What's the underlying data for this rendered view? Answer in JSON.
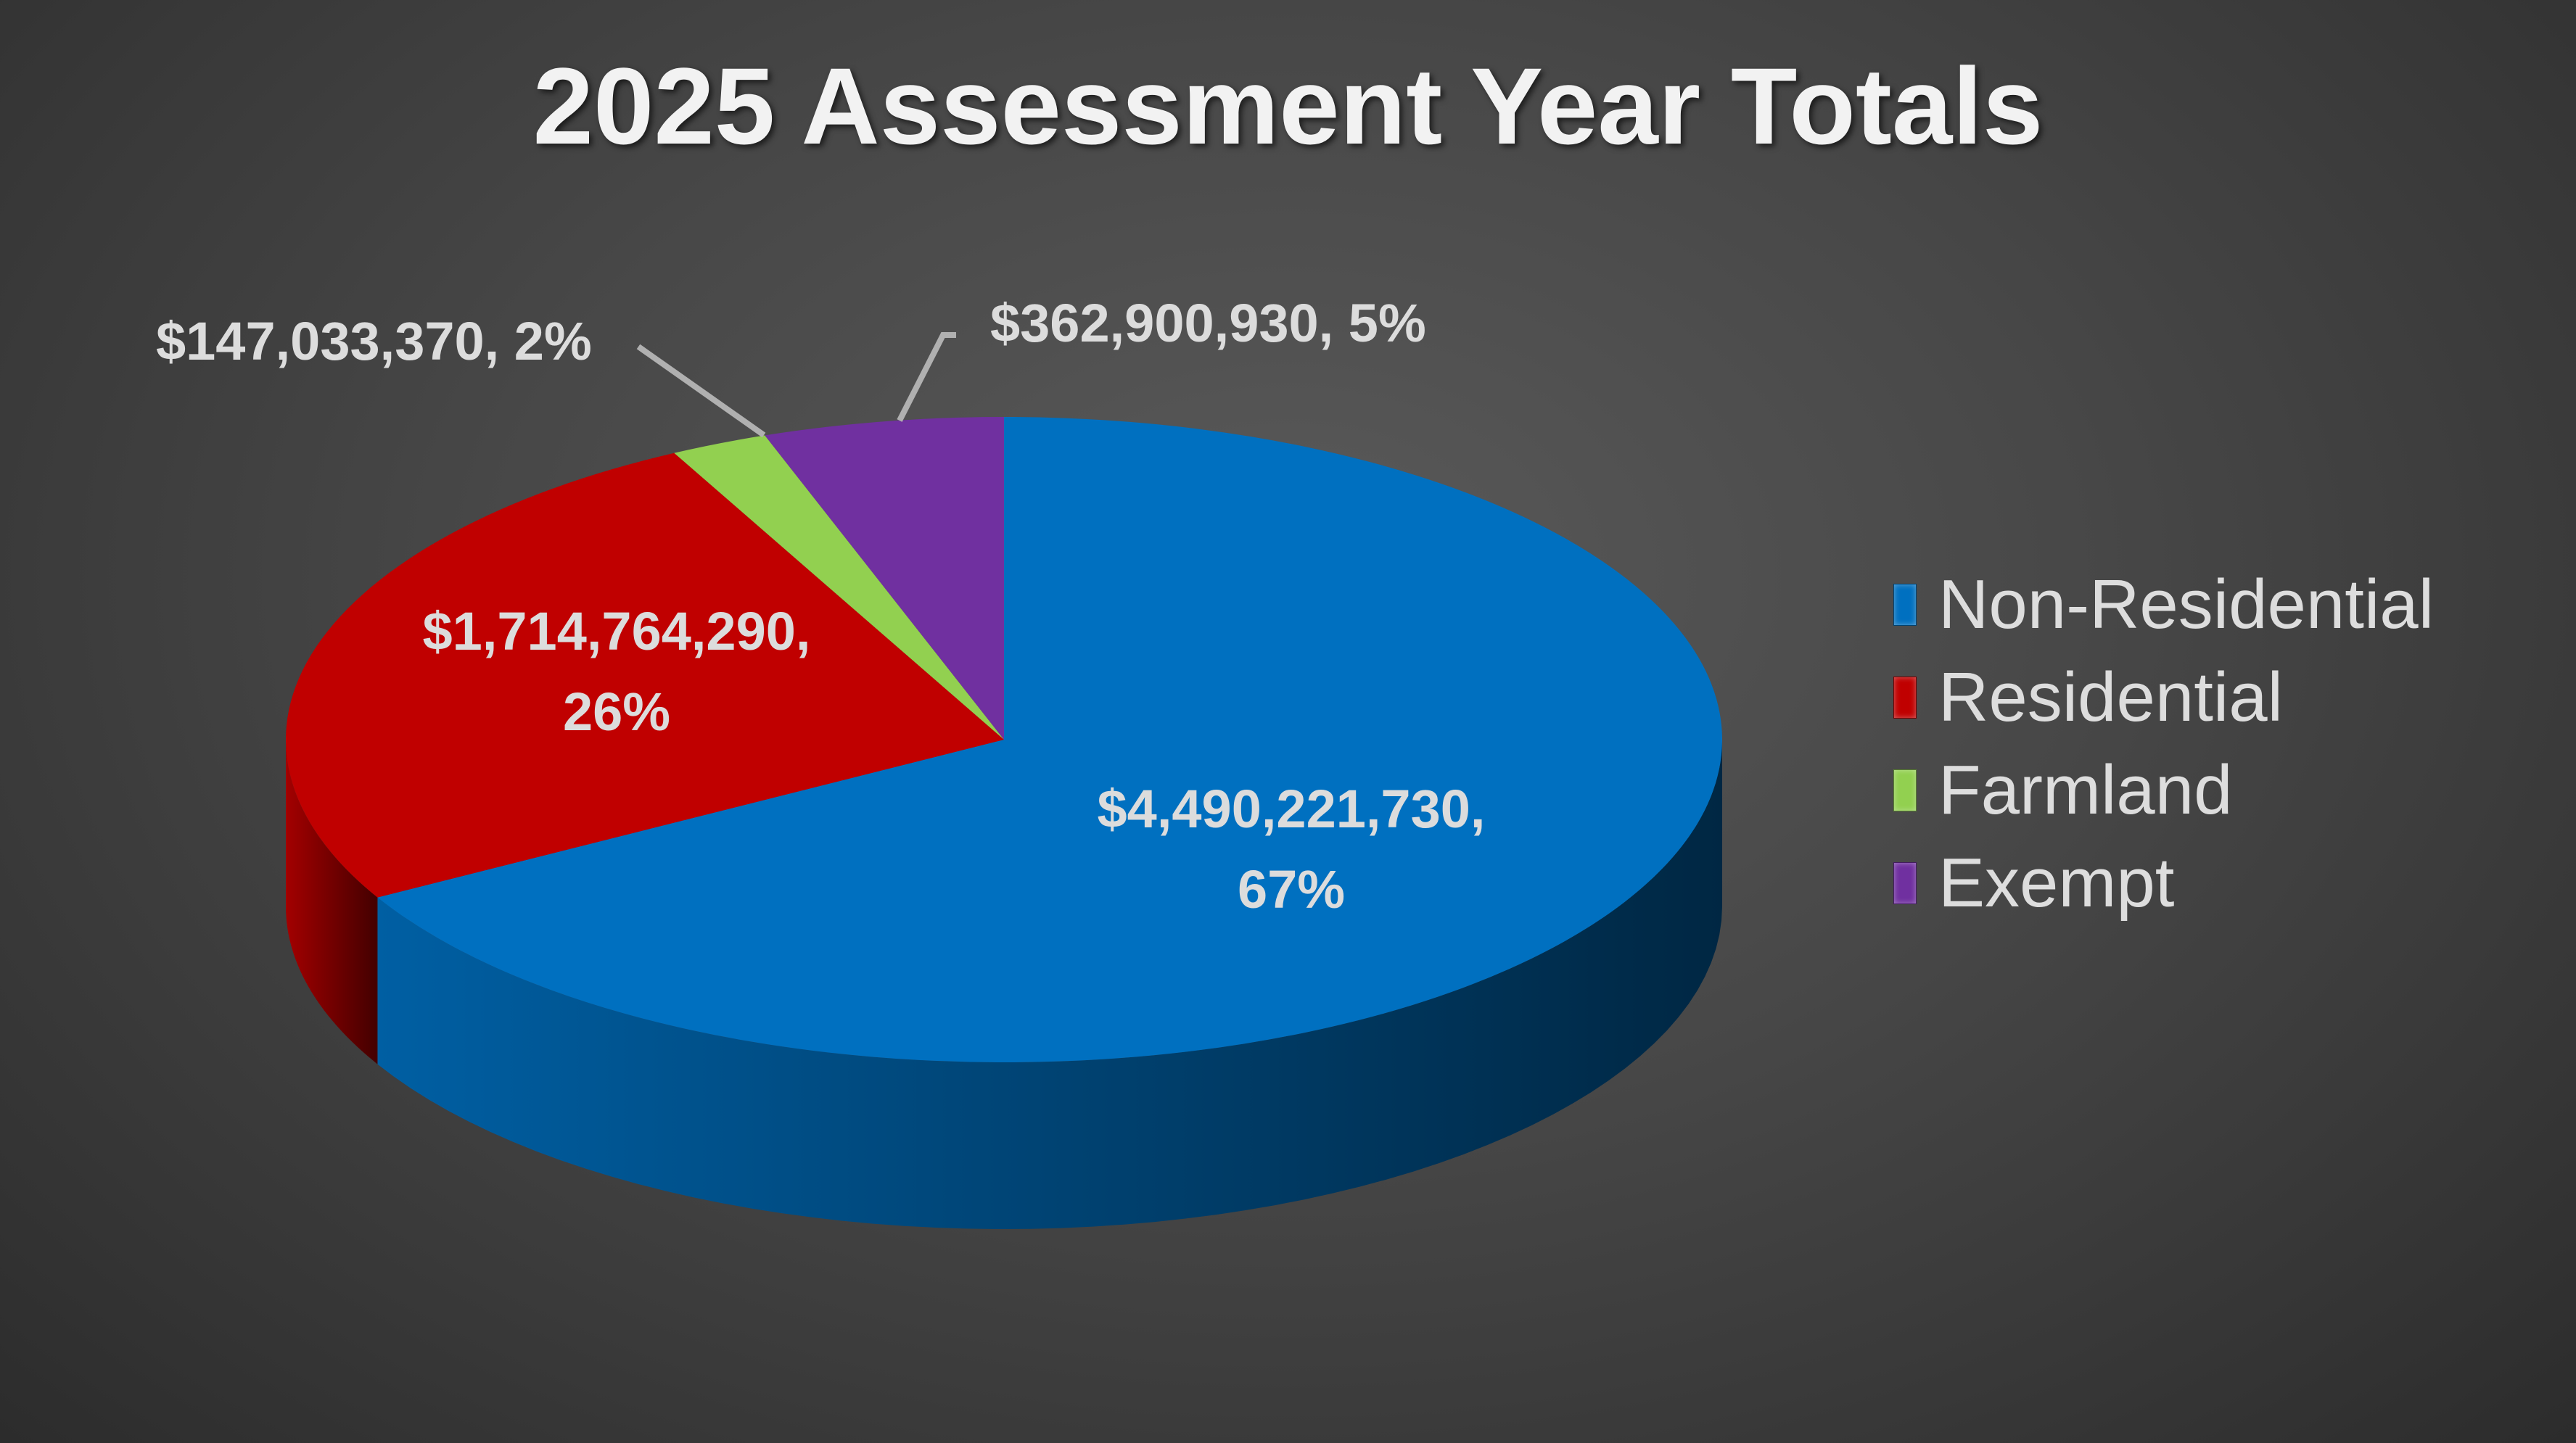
{
  "chart_data": {
    "type": "pie",
    "title": "2025 Assessment Year Totals",
    "categories": [
      "Non-Residential",
      "Residential",
      "Farmland",
      "Exempt"
    ],
    "values": [
      4490221730,
      1714764290,
      147033370,
      362900930
    ],
    "percents": [
      67,
      26,
      2,
      5
    ],
    "colors": [
      "#0070c0",
      "#c00000",
      "#92d050",
      "#7030a0"
    ],
    "data_labels": [
      {
        "value": "$4,490,221,730,",
        "pct": "67%"
      },
      {
        "value": "$1,714,764,290,",
        "pct": "26%"
      },
      {
        "value": "$147,033,370, 2%"
      },
      {
        "value": "$362,900,930, 5%"
      }
    ],
    "legend_position": "right",
    "style": "3d"
  }
}
